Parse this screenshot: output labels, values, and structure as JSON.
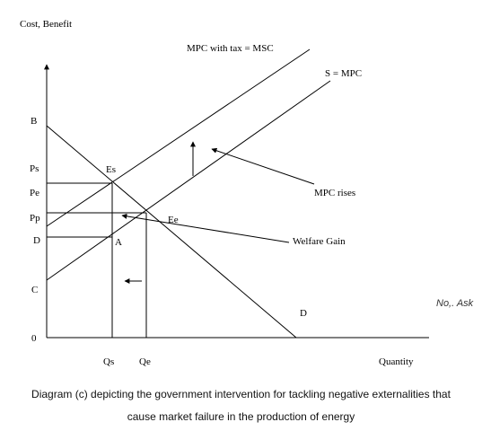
{
  "diagram": {
    "y_axis_label": "Cost, Benefit",
    "x_axis_label": "Quantity",
    "curves": {
      "mpc_with_tax": "MPC with tax = MSC",
      "supply_mpc": "S = MPC",
      "demand": "D"
    },
    "price_labels": {
      "b": "B",
      "ps": "Ps",
      "pe": "Pe",
      "pp": "Pp",
      "d": "D",
      "c": "C",
      "zero": "0"
    },
    "quantity_labels": {
      "qs": "Qs",
      "qe": "Qe"
    },
    "points": {
      "es": "Es",
      "ee": "Ee",
      "a": "A"
    },
    "annotations": {
      "mpc_rises": "MPC rises",
      "welfare_gain": "Welfare Gain"
    },
    "side_note": "No,. Ask",
    "caption_line_1": "Diagram (c) depicting the government intervention for tackling negative externalities that",
    "caption_line_2": "cause market failure in the production of energy"
  }
}
